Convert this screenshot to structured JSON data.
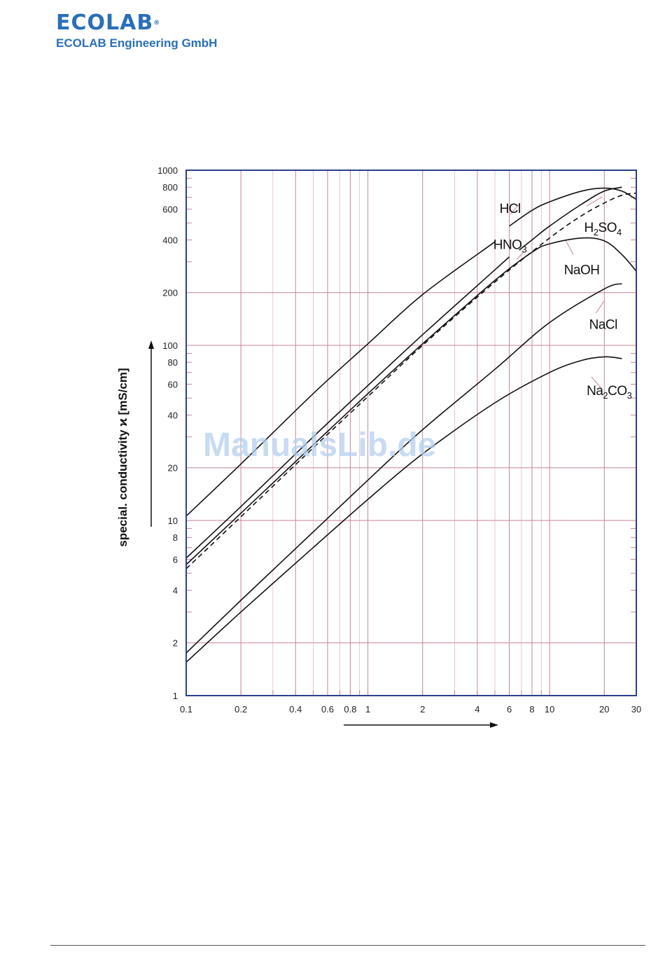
{
  "header": {
    "logo_text": "ECOLAB",
    "logo_reg": "®",
    "company": "ECOLAB Engineering GmbH"
  },
  "watermark": "ManualsLib.de",
  "colors": {
    "frame": "#2a3f8f",
    "grid_major": "#c8839a",
    "grid_minor": "#e2b8c6",
    "curve": "#111111",
    "brand": "#2a6fb8"
  },
  "chart_data": {
    "type": "line",
    "title": "",
    "xlabel": "",
    "ylabel": "special. conductivity ϰ [mS/cm]",
    "x_scale": "log",
    "y_scale": "log",
    "xlim": [
      0.1,
      30
    ],
    "ylim": [
      1,
      1000
    ],
    "grid": true,
    "legend": "inline labels",
    "x_ticks": [
      {
        "v": 0.1,
        "label": "0.1"
      },
      {
        "v": 0.2,
        "label": "0.2"
      },
      {
        "v": 0.4,
        "label": "0.4"
      },
      {
        "v": 0.6,
        "label": "0.6"
      },
      {
        "v": 0.8,
        "label": "0.8"
      },
      {
        "v": 1,
        "label": "1"
      },
      {
        "v": 2,
        "label": "2"
      },
      {
        "v": 4,
        "label": "4"
      },
      {
        "v": 6,
        "label": "6"
      },
      {
        "v": 8,
        "label": "8"
      },
      {
        "v": 10,
        "label": "10"
      },
      {
        "v": 20,
        "label": "20"
      },
      {
        "v": 30,
        "label": "30"
      }
    ],
    "y_ticks": [
      {
        "v": 1,
        "label": "1"
      },
      {
        "v": 2,
        "label": "2"
      },
      {
        "v": 4,
        "label": "4"
      },
      {
        "v": 6,
        "label": "6"
      },
      {
        "v": 8,
        "label": "8"
      },
      {
        "v": 10,
        "label": "10"
      },
      {
        "v": 20,
        "label": "20"
      },
      {
        "v": 40,
        "label": "40"
      },
      {
        "v": 60,
        "label": "60"
      },
      {
        "v": 80,
        "label": "80"
      },
      {
        "v": 100,
        "label": "100"
      },
      {
        "v": 200,
        "label": "200"
      },
      {
        "v": 400,
        "label": "400"
      },
      {
        "v": 600,
        "label": "600"
      },
      {
        "v": 800,
        "label": "800"
      },
      {
        "v": 1000,
        "label": "1000"
      }
    ],
    "x_grid": [
      0.1,
      0.2,
      0.3,
      0.4,
      0.5,
      0.6,
      0.7,
      0.8,
      0.9,
      1,
      2,
      3,
      4,
      5,
      6,
      7,
      8,
      9,
      10,
      20,
      30
    ],
    "y_grid": [
      1,
      2,
      3,
      4,
      5,
      6,
      7,
      8,
      9,
      10,
      20,
      30,
      40,
      50,
      60,
      70,
      80,
      90,
      100,
      200,
      300,
      400,
      500,
      600,
      700,
      800,
      900,
      1000
    ],
    "series": [
      {
        "name": "HCl",
        "name_main": "HCl",
        "name_sub1": "",
        "name_mid": "",
        "name_sub2": "",
        "dashed": false,
        "segments": [
          {
            "x": [
              0.1,
              0.2,
              0.5,
              1,
              2,
              5
            ],
            "y": [
              10.6,
              21,
              53,
              102,
              195,
              390
            ]
          },
          {
            "x": [
              6,
              8,
              10,
              15,
              20,
              25,
              30
            ],
            "y": [
              480,
              590,
              660,
              760,
              790,
              760,
              680
            ]
          }
        ],
        "label_pos": {
          "x": 5.3,
          "y": 570
        },
        "leader": {
          "x": [
            6.8,
            6.1
          ],
          "y": [
            640,
            560
          ]
        }
      },
      {
        "name": "HNO3",
        "name_main": "HNO",
        "name_sub1": "3",
        "name_mid": "",
        "name_sub2": "",
        "dashed": false,
        "segments": [
          {
            "x": [
              0.1,
              0.2,
              0.5,
              1,
              2,
              5,
              6
            ],
            "y": [
              6.1,
              12,
              30,
              59,
              115,
              270,
              320
            ]
          },
          {
            "x": [
              6.8,
              8,
              10,
              15,
              20,
              25
            ],
            "y": [
              350,
              400,
              480,
              640,
              760,
              800
            ]
          }
        ],
        "label_pos": {
          "x": 4.9,
          "y": 355
        },
        "leader": {
          "x": [
            7.2,
            6.6
          ],
          "y": [
            340,
            310
          ]
        }
      },
      {
        "name": "H2SO4",
        "name_main": "H",
        "name_sub1": "2",
        "name_mid": "SO",
        "name_sub2": "4",
        "dashed": true,
        "segments": [
          {
            "x": [
              0.1,
              0.2,
              0.5,
              1,
              2,
              5,
              10,
              15,
              20,
              25,
              30
            ],
            "y": [
              5.3,
              10.5,
              26,
              51,
              100,
              230,
              410,
              550,
              650,
              720,
              740
            ]
          }
        ],
        "label_pos": {
          "x": 15.5,
          "y": 445
        },
        "leader": {
          "x": [
            16,
            19.5
          ],
          "y": [
            625,
            705
          ]
        }
      },
      {
        "name": "NaOH",
        "name_main": "NaOH",
        "name_sub1": "",
        "name_mid": "",
        "name_sub2": "",
        "dashed": false,
        "segments": [
          {
            "x": [
              0.1,
              0.2,
              0.5,
              1,
              2,
              5,
              8,
              10,
              15,
              20,
              25,
              30
            ],
            "y": [
              5.6,
              11,
              27,
              53,
              102,
              235,
              340,
              380,
              410,
              395,
              330,
              265
            ]
          }
        ],
        "label_pos": {
          "x": 12,
          "y": 255
        },
        "leader": {
          "x": [
            13.5,
            12.3
          ],
          "y": [
            330,
            395
          ]
        }
      },
      {
        "name": "NaCl",
        "name_main": "NaCl",
        "name_sub1": "",
        "name_mid": "",
        "name_sub2": "",
        "dashed": false,
        "segments": [
          {
            "x": [
              0.1,
              0.2,
              0.5,
              1,
              2,
              5,
              10,
              20,
              25
            ],
            "y": [
              1.75,
              3.5,
              8.6,
              17,
              33,
              73,
              135,
              210,
              225
            ]
          }
        ],
        "label_pos": {
          "x": 16.5,
          "y": 124
        },
        "leader": {
          "x": [
            18,
            20
          ],
          "y": [
            153,
            180
          ]
        }
      },
      {
        "name": "Na2CO3",
        "name_main": "Na",
        "name_sub1": "2",
        "name_mid": "CO",
        "name_sub2": "3",
        "dashed": false,
        "segments": [
          {
            "x": [
              0.1,
              0.2,
              0.5,
              1,
              2,
              5,
              10,
              15,
              20,
              25
            ],
            "y": [
              1.55,
              3,
              7,
              13.2,
              24,
              47,
              70,
              82,
              86,
              84
            ]
          }
        ],
        "label_pos": {
          "x": 16,
          "y": 52
        },
        "leader": {
          "x": [
            17,
            19.5
          ],
          "y": [
            66,
            56
          ]
        }
      }
    ]
  }
}
